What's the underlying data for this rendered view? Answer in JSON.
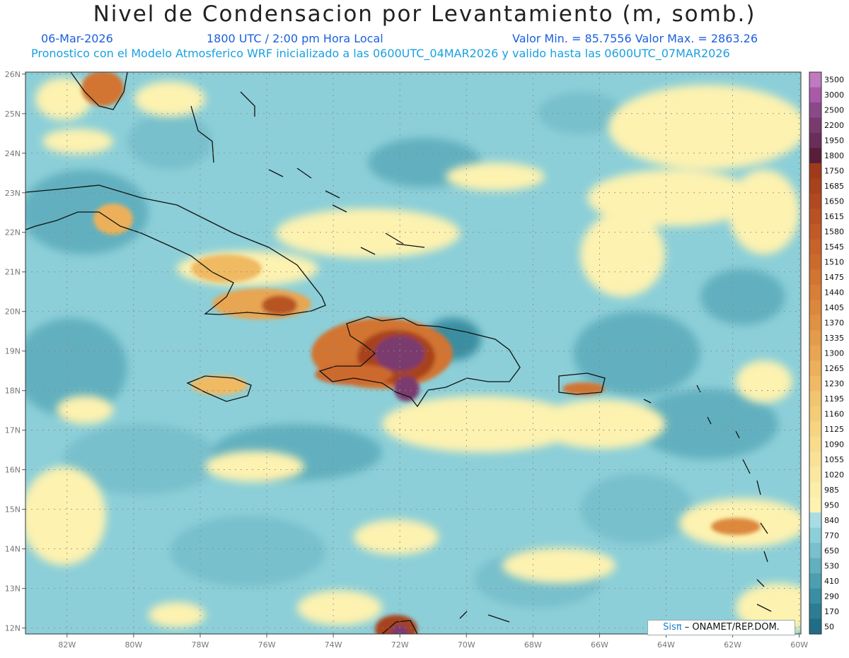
{
  "header": {
    "title": "Nivel de Condensacion por Levantamiento (m, somb.)",
    "date": "06-Mar-2026",
    "time": "1800 UTC / 2:00 pm Hora Local",
    "min_max": "Valor Min. = 85.7556   Valor Max. = 2863.26",
    "description": "Pronostico con el Modelo Atmosferico WRF inicializado a las 0600UTC_04MAR2026 y valido hasta las  0600UTC_07MAR2026"
  },
  "map": {
    "lon_ticks": [
      "82W",
      "80W",
      "78W",
      "76W",
      "74W",
      "72W",
      "70W",
      "68W",
      "66W",
      "64W",
      "62W",
      "60W"
    ],
    "lat_ticks": [
      "26N",
      "25N",
      "24N",
      "23N",
      "22N",
      "21N",
      "20N",
      "19N",
      "18N",
      "17N",
      "16N",
      "15N",
      "14N",
      "13N",
      "12N"
    ],
    "lon_range": [
      -83.25,
      -59.95
    ],
    "lat_range": [
      11.85,
      26.05
    ]
  },
  "legend": {
    "levels": [
      "3500",
      "3000",
      "2500",
      "2200",
      "1950",
      "1800",
      "1750",
      "1685",
      "1650",
      "1615",
      "1580",
      "1545",
      "1510",
      "1475",
      "1440",
      "1405",
      "1370",
      "1335",
      "1300",
      "1265",
      "1230",
      "1195",
      "1160",
      "1125",
      "1090",
      "1055",
      "1020",
      "985",
      "950",
      "840",
      "770",
      "650",
      "530",
      "410",
      "290",
      "170",
      "50"
    ],
    "colors": [
      "#c07ac0",
      "#a85aa8",
      "#8a4a8a",
      "#7a3a6e",
      "#6a2e5a",
      "#5a1e3a",
      "#a03a1a",
      "#a8421c",
      "#b04a1e",
      "#b85222",
      "#c05a26",
      "#c6622a",
      "#cc6a2e",
      "#d27432",
      "#d87e36",
      "#dc883c",
      "#e09244",
      "#e49c4a",
      "#e8a652",
      "#ecb05a",
      "#f0ba64",
      "#f2c46e",
      "#f4cc78",
      "#f6d482",
      "#f8dc8c",
      "#f9e296",
      "#fae8a0",
      "#fbeeaa",
      "#fdf2b0",
      "#a8dde6",
      "#8ccfd8",
      "#78c0cc",
      "#62b0bf",
      "#4c9fb0",
      "#3a8ea2",
      "#2c7d94",
      "#216c86"
    ]
  },
  "credit": {
    "logo": "Sisπ",
    "text": "ONAMET/REP.DOM."
  }
}
